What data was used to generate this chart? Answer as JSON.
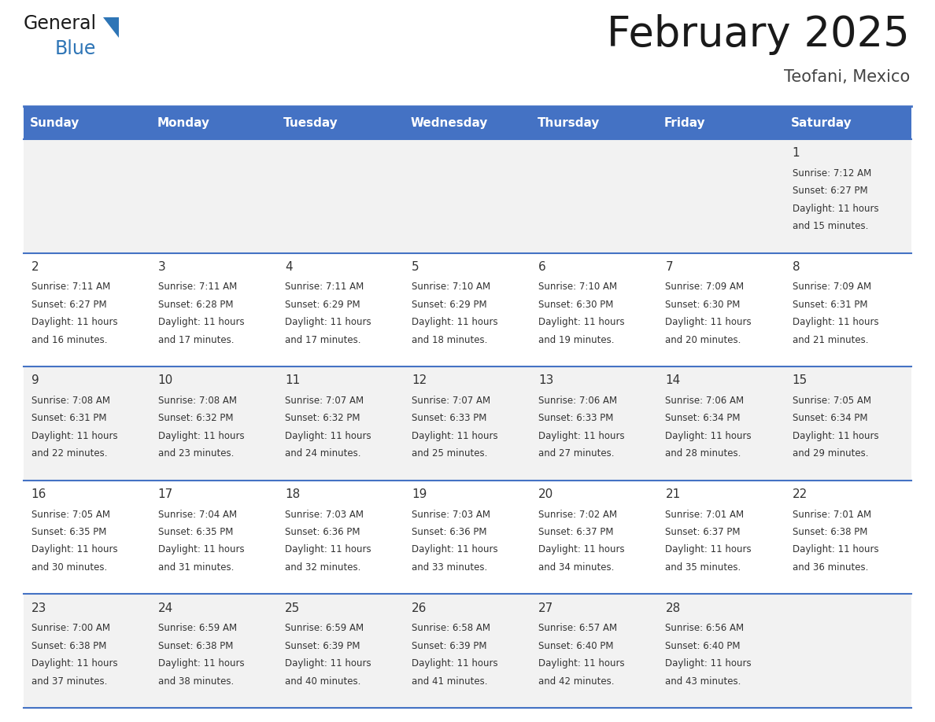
{
  "title": "February 2025",
  "subtitle": "Teofani, Mexico",
  "header_bg": "#4472C4",
  "header_text_color": "#FFFFFF",
  "header_days": [
    "Sunday",
    "Monday",
    "Tuesday",
    "Wednesday",
    "Thursday",
    "Friday",
    "Saturday"
  ],
  "cell_bg_light": "#F2F2F2",
  "cell_bg_white": "#FFFFFF",
  "day_text_color": "#333333",
  "info_text_color": "#333333",
  "border_color": "#4472C4",
  "title_color": "#1a1a1a",
  "subtitle_color": "#444444",
  "days": [
    {
      "day": 1,
      "col": 6,
      "row": 0,
      "sunrise": "7:12 AM",
      "sunset": "6:27 PM",
      "daylight": "11 hours and 15 minutes."
    },
    {
      "day": 2,
      "col": 0,
      "row": 1,
      "sunrise": "7:11 AM",
      "sunset": "6:27 PM",
      "daylight": "11 hours and 16 minutes."
    },
    {
      "day": 3,
      "col": 1,
      "row": 1,
      "sunrise": "7:11 AM",
      "sunset": "6:28 PM",
      "daylight": "11 hours and 17 minutes."
    },
    {
      "day": 4,
      "col": 2,
      "row": 1,
      "sunrise": "7:11 AM",
      "sunset": "6:29 PM",
      "daylight": "11 hours and 17 minutes."
    },
    {
      "day": 5,
      "col": 3,
      "row": 1,
      "sunrise": "7:10 AM",
      "sunset": "6:29 PM",
      "daylight": "11 hours and 18 minutes."
    },
    {
      "day": 6,
      "col": 4,
      "row": 1,
      "sunrise": "7:10 AM",
      "sunset": "6:30 PM",
      "daylight": "11 hours and 19 minutes."
    },
    {
      "day": 7,
      "col": 5,
      "row": 1,
      "sunrise": "7:09 AM",
      "sunset": "6:30 PM",
      "daylight": "11 hours and 20 minutes."
    },
    {
      "day": 8,
      "col": 6,
      "row": 1,
      "sunrise": "7:09 AM",
      "sunset": "6:31 PM",
      "daylight": "11 hours and 21 minutes."
    },
    {
      "day": 9,
      "col": 0,
      "row": 2,
      "sunrise": "7:08 AM",
      "sunset": "6:31 PM",
      "daylight": "11 hours and 22 minutes."
    },
    {
      "day": 10,
      "col": 1,
      "row": 2,
      "sunrise": "7:08 AM",
      "sunset": "6:32 PM",
      "daylight": "11 hours and 23 minutes."
    },
    {
      "day": 11,
      "col": 2,
      "row": 2,
      "sunrise": "7:07 AM",
      "sunset": "6:32 PM",
      "daylight": "11 hours and 24 minutes."
    },
    {
      "day": 12,
      "col": 3,
      "row": 2,
      "sunrise": "7:07 AM",
      "sunset": "6:33 PM",
      "daylight": "11 hours and 25 minutes."
    },
    {
      "day": 13,
      "col": 4,
      "row": 2,
      "sunrise": "7:06 AM",
      "sunset": "6:33 PM",
      "daylight": "11 hours and 27 minutes."
    },
    {
      "day": 14,
      "col": 5,
      "row": 2,
      "sunrise": "7:06 AM",
      "sunset": "6:34 PM",
      "daylight": "11 hours and 28 minutes."
    },
    {
      "day": 15,
      "col": 6,
      "row": 2,
      "sunrise": "7:05 AM",
      "sunset": "6:34 PM",
      "daylight": "11 hours and 29 minutes."
    },
    {
      "day": 16,
      "col": 0,
      "row": 3,
      "sunrise": "7:05 AM",
      "sunset": "6:35 PM",
      "daylight": "11 hours and 30 minutes."
    },
    {
      "day": 17,
      "col": 1,
      "row": 3,
      "sunrise": "7:04 AM",
      "sunset": "6:35 PM",
      "daylight": "11 hours and 31 minutes."
    },
    {
      "day": 18,
      "col": 2,
      "row": 3,
      "sunrise": "7:03 AM",
      "sunset": "6:36 PM",
      "daylight": "11 hours and 32 minutes."
    },
    {
      "day": 19,
      "col": 3,
      "row": 3,
      "sunrise": "7:03 AM",
      "sunset": "6:36 PM",
      "daylight": "11 hours and 33 minutes."
    },
    {
      "day": 20,
      "col": 4,
      "row": 3,
      "sunrise": "7:02 AM",
      "sunset": "6:37 PM",
      "daylight": "11 hours and 34 minutes."
    },
    {
      "day": 21,
      "col": 5,
      "row": 3,
      "sunrise": "7:01 AM",
      "sunset": "6:37 PM",
      "daylight": "11 hours and 35 minutes."
    },
    {
      "day": 22,
      "col": 6,
      "row": 3,
      "sunrise": "7:01 AM",
      "sunset": "6:38 PM",
      "daylight": "11 hours and 36 minutes."
    },
    {
      "day": 23,
      "col": 0,
      "row": 4,
      "sunrise": "7:00 AM",
      "sunset": "6:38 PM",
      "daylight": "11 hours and 37 minutes."
    },
    {
      "day": 24,
      "col": 1,
      "row": 4,
      "sunrise": "6:59 AM",
      "sunset": "6:38 PM",
      "daylight": "11 hours and 38 minutes."
    },
    {
      "day": 25,
      "col": 2,
      "row": 4,
      "sunrise": "6:59 AM",
      "sunset": "6:39 PM",
      "daylight": "11 hours and 40 minutes."
    },
    {
      "day": 26,
      "col": 3,
      "row": 4,
      "sunrise": "6:58 AM",
      "sunset": "6:39 PM",
      "daylight": "11 hours and 41 minutes."
    },
    {
      "day": 27,
      "col": 4,
      "row": 4,
      "sunrise": "6:57 AM",
      "sunset": "6:40 PM",
      "daylight": "11 hours and 42 minutes."
    },
    {
      "day": 28,
      "col": 5,
      "row": 4,
      "sunrise": "6:56 AM",
      "sunset": "6:40 PM",
      "daylight": "11 hours and 43 minutes."
    }
  ],
  "num_rows": 5,
  "logo_general_color": "#1a1a1a",
  "logo_blue_color": "#2E75B6"
}
